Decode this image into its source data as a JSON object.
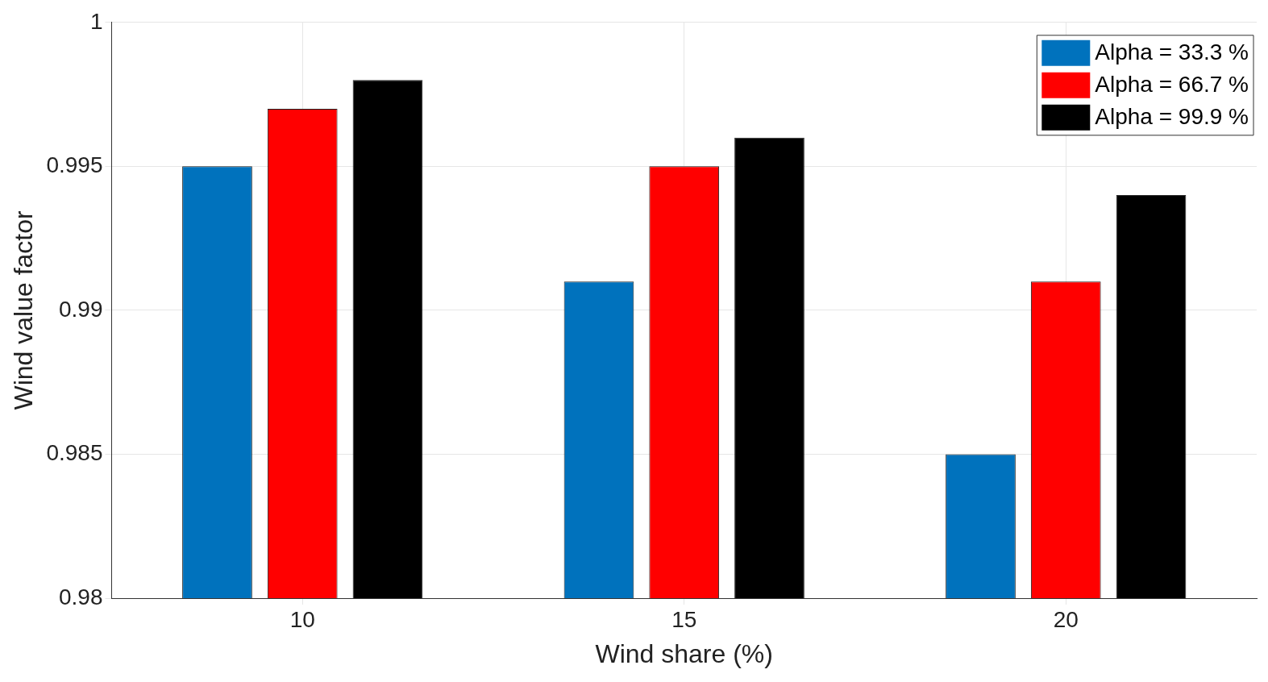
{
  "chart_data": {
    "type": "bar",
    "xlabel": "Wind share (%)",
    "ylabel": "Wind value factor",
    "categories": [
      "10",
      "15",
      "20"
    ],
    "series": [
      {
        "name": "Alpha = 33.3 %",
        "color": "#0072bd",
        "values": [
          0.995,
          0.991,
          0.985
        ]
      },
      {
        "name": "Alpha = 66.7 %",
        "color": "#ff0000",
        "values": [
          0.997,
          0.995,
          0.991
        ]
      },
      {
        "name": "Alpha = 99.9 %",
        "color": "#000000",
        "values": [
          0.998,
          0.996,
          0.994
        ]
      }
    ],
    "ylim": [
      0.98,
      1
    ],
    "yticks": [
      0.98,
      0.985,
      0.99,
      0.995,
      1
    ],
    "grid": true,
    "legend": "top right"
  }
}
